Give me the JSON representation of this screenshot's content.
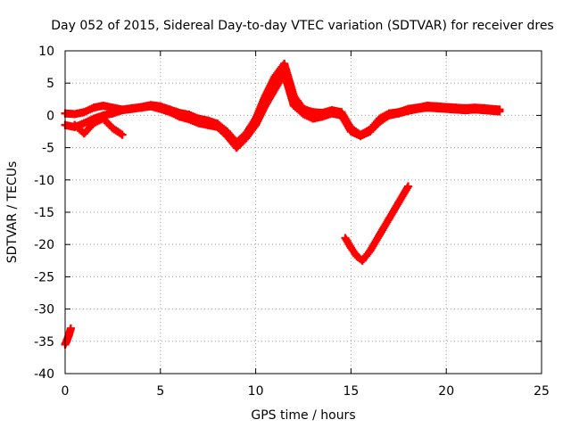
{
  "chart_data": {
    "type": "scatter",
    "title": "Day 052 of 2015, Sidereal Day-to-day VTEC variation (SDTVAR) for receiver dres",
    "xlabel": "GPS time / hours",
    "ylabel": "SDTVAR / TECUs",
    "xlim": [
      0,
      25
    ],
    "ylim": [
      -40,
      10
    ],
    "x_ticks": [
      0,
      5,
      10,
      15,
      20,
      25
    ],
    "y_ticks": [
      10,
      5,
      0,
      -5,
      -10,
      -15,
      -20,
      -25,
      -30,
      -35,
      -40
    ],
    "x_tick_labels": [
      "0",
      "5",
      "10",
      "15",
      "20",
      "25"
    ],
    "y_tick_labels": [
      "10",
      "5",
      "0",
      "-5",
      "-10",
      "-15",
      "-20",
      "-25",
      "-30",
      "-35",
      "-40"
    ],
    "grid": true,
    "marker": "plus",
    "series": [
      {
        "name": "main-trace-a",
        "color": "#ff0000",
        "x": [
          0,
          0.5,
          1,
          1.5,
          2,
          2.5,
          3,
          3.5,
          4,
          4.5,
          5,
          5.5,
          6,
          6.5,
          7,
          7.5,
          8,
          8.5,
          9,
          9.5,
          10,
          10.5,
          11,
          11.5,
          12,
          12.5,
          13,
          13.5,
          14,
          14.5,
          15,
          15.5,
          16,
          16.5,
          17,
          17.5,
          18,
          18.5,
          19,
          19.5,
          20,
          20.5,
          21,
          21.5,
          22,
          22.8
        ],
        "y": [
          0.3,
          0.2,
          0.5,
          1.2,
          1.5,
          1.2,
          0.9,
          1.1,
          1.3,
          1.6,
          1.4,
          0.9,
          0.4,
          0.1,
          -0.5,
          -0.8,
          -1.3,
          -2.5,
          -4.2,
          -2.8,
          -0.5,
          3.0,
          6.0,
          8.0,
          3.0,
          1.0,
          0.5,
          0.4,
          0.8,
          0.5,
          -2.0,
          -3.0,
          -2.2,
          -0.5,
          0.3,
          0.5,
          1.0,
          1.2,
          1.5,
          1.4,
          1.3,
          1.2,
          1.1,
          1.2,
          1.1,
          0.9
        ]
      },
      {
        "name": "main-trace-b",
        "color": "#ff0000",
        "x": [
          0,
          0.5,
          1,
          1.5,
          2,
          2.5,
          3,
          3.5,
          4,
          4.5,
          5,
          5.5,
          6,
          6.5,
          7,
          7.5,
          8,
          8.5,
          9,
          9.5,
          10,
          10.5,
          11,
          11.5,
          12,
          12.5,
          13,
          13.5,
          14,
          14.5,
          15,
          15.5,
          16,
          16.5,
          17,
          17.5,
          18,
          18.5,
          19,
          19.5,
          20,
          20.5,
          21,
          21.5,
          22,
          22.8
        ],
        "y": [
          -1.5,
          -1.8,
          -1.2,
          -0.5,
          0.0,
          0.3,
          0.8,
          1.0,
          1.2,
          1.4,
          1.0,
          0.5,
          -0.2,
          -0.6,
          -1.2,
          -1.5,
          -1.8,
          -3.2,
          -5.0,
          -3.5,
          -1.5,
          1.5,
          4.0,
          6.5,
          1.5,
          0.2,
          -0.5,
          -0.2,
          0.3,
          0.0,
          -2.5,
          -3.2,
          -2.5,
          -1.0,
          0.0,
          0.3,
          0.7,
          1.0,
          1.2,
          1.1,
          1.0,
          0.9,
          0.8,
          0.9,
          0.8,
          0.6
        ]
      },
      {
        "name": "side-trace",
        "color": "#ff0000",
        "x": [
          0.5,
          1.0,
          1.5,
          2.0,
          2.5,
          3.0
        ],
        "y": [
          -1.5,
          -2.8,
          -1.2,
          -0.5,
          -2.0,
          -3.0
        ]
      },
      {
        "name": "lower-segment",
        "color": "#ff0000",
        "x": [
          14.7,
          15.0,
          15.3,
          15.6,
          16.0,
          16.5,
          17.0,
          17.5,
          18.0
        ],
        "y": [
          -19.0,
          -20.5,
          -21.8,
          -22.5,
          -21.0,
          -18.5,
          -16.0,
          -13.5,
          -11.0
        ]
      },
      {
        "name": "start-segment",
        "color": "#ff0000",
        "x": [
          0.0,
          0.1,
          0.2,
          0.3
        ],
        "y": [
          -35.5,
          -34.8,
          -34.0,
          -33.0
        ]
      }
    ]
  }
}
